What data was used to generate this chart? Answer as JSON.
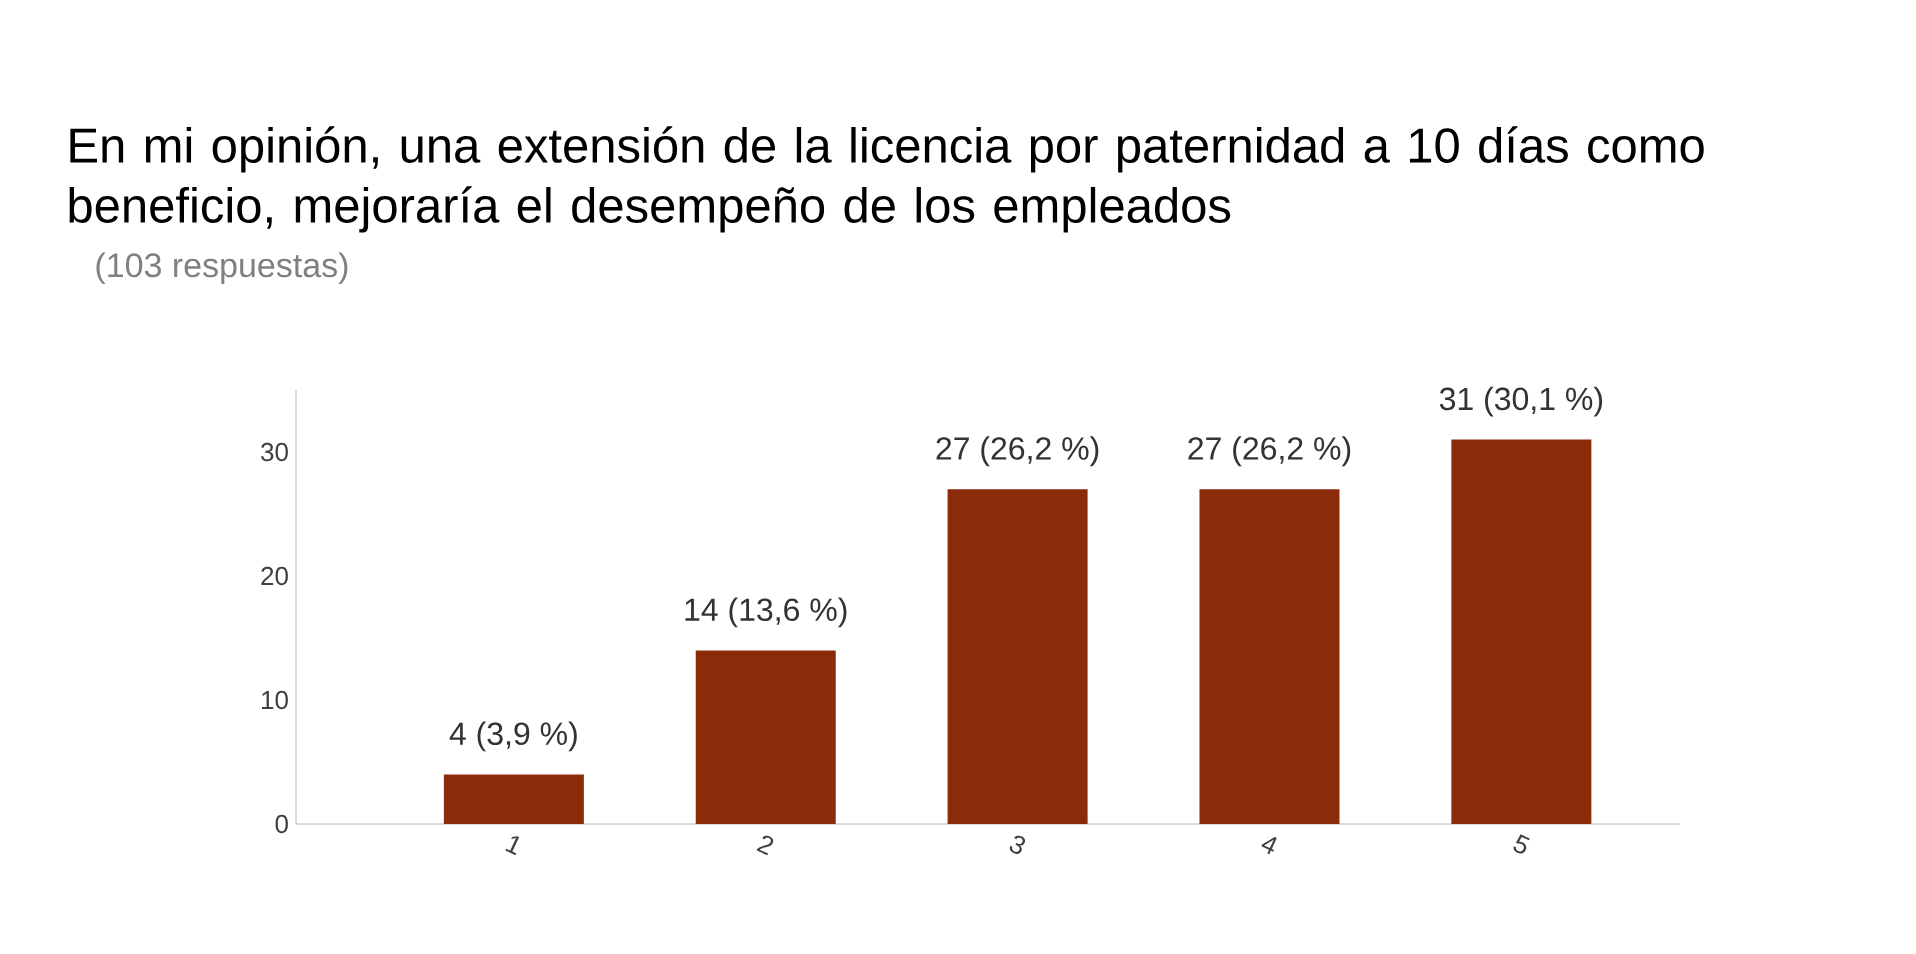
{
  "chart_data": {
    "type": "bar",
    "title": "En mi opinión, una extensión de la licencia por paternidad a 10 días como beneficio, mejoraría el desempeño de los empleados",
    "subtitle": "(103 respuestas)",
    "categories": [
      "1",
      "2",
      "3",
      "4",
      "5"
    ],
    "values": [
      4,
      14,
      27,
      27,
      31
    ],
    "value_labels": [
      "4 (3,9 %)",
      "14 (13,6 %)",
      "27 (26,2 %)",
      "27 (26,2 %)",
      "31 (30,1 %)"
    ],
    "color": "#8a2b0a",
    "ylim": [
      0,
      35
    ],
    "yticks": [
      0,
      10,
      20,
      30
    ],
    "grid": false
  }
}
